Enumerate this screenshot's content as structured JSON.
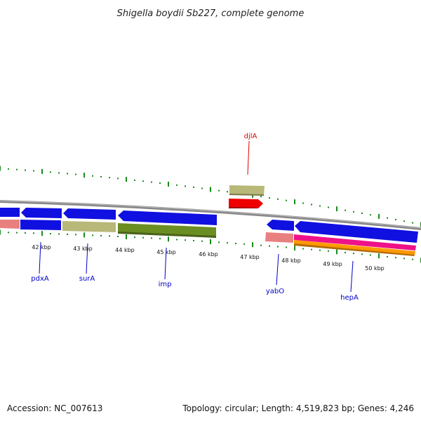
{
  "title": "Shigella boydii Sb227, complete genome",
  "footer": {
    "accession": "Accession: NC_007613",
    "summary": "Topology: circular; Length: 4,519,823 bp; Genes: 4,246"
  },
  "scale_labels": [
    "42 kbp",
    "43 kbp",
    "44 kbp",
    "45 kbp",
    "46 kbp",
    "47 kbp",
    "48 kbp",
    "49 kbp",
    "50 kbp"
  ],
  "gene_labels": [
    {
      "text": "djlA",
      "color": "#dd0000"
    },
    {
      "text": "pdxA",
      "color": "#0000cc"
    },
    {
      "text": "surA",
      "color": "#0000cc"
    },
    {
      "text": "imp",
      "color": "#0000cc"
    },
    {
      "text": "yabO",
      "color": "#0000cc"
    },
    {
      "text": "hepA",
      "color": "#0000cc"
    }
  ],
  "colors": {
    "cds_blue": "#1010e0",
    "rna_red": "#ee0000",
    "backbone": "#888888",
    "tick": "#1a8a1a",
    "khaki": "#b8b878",
    "salmon": "#e88080",
    "olive": "#6b8e23",
    "magenta": "#ee1188",
    "orange": "#ff9900"
  }
}
